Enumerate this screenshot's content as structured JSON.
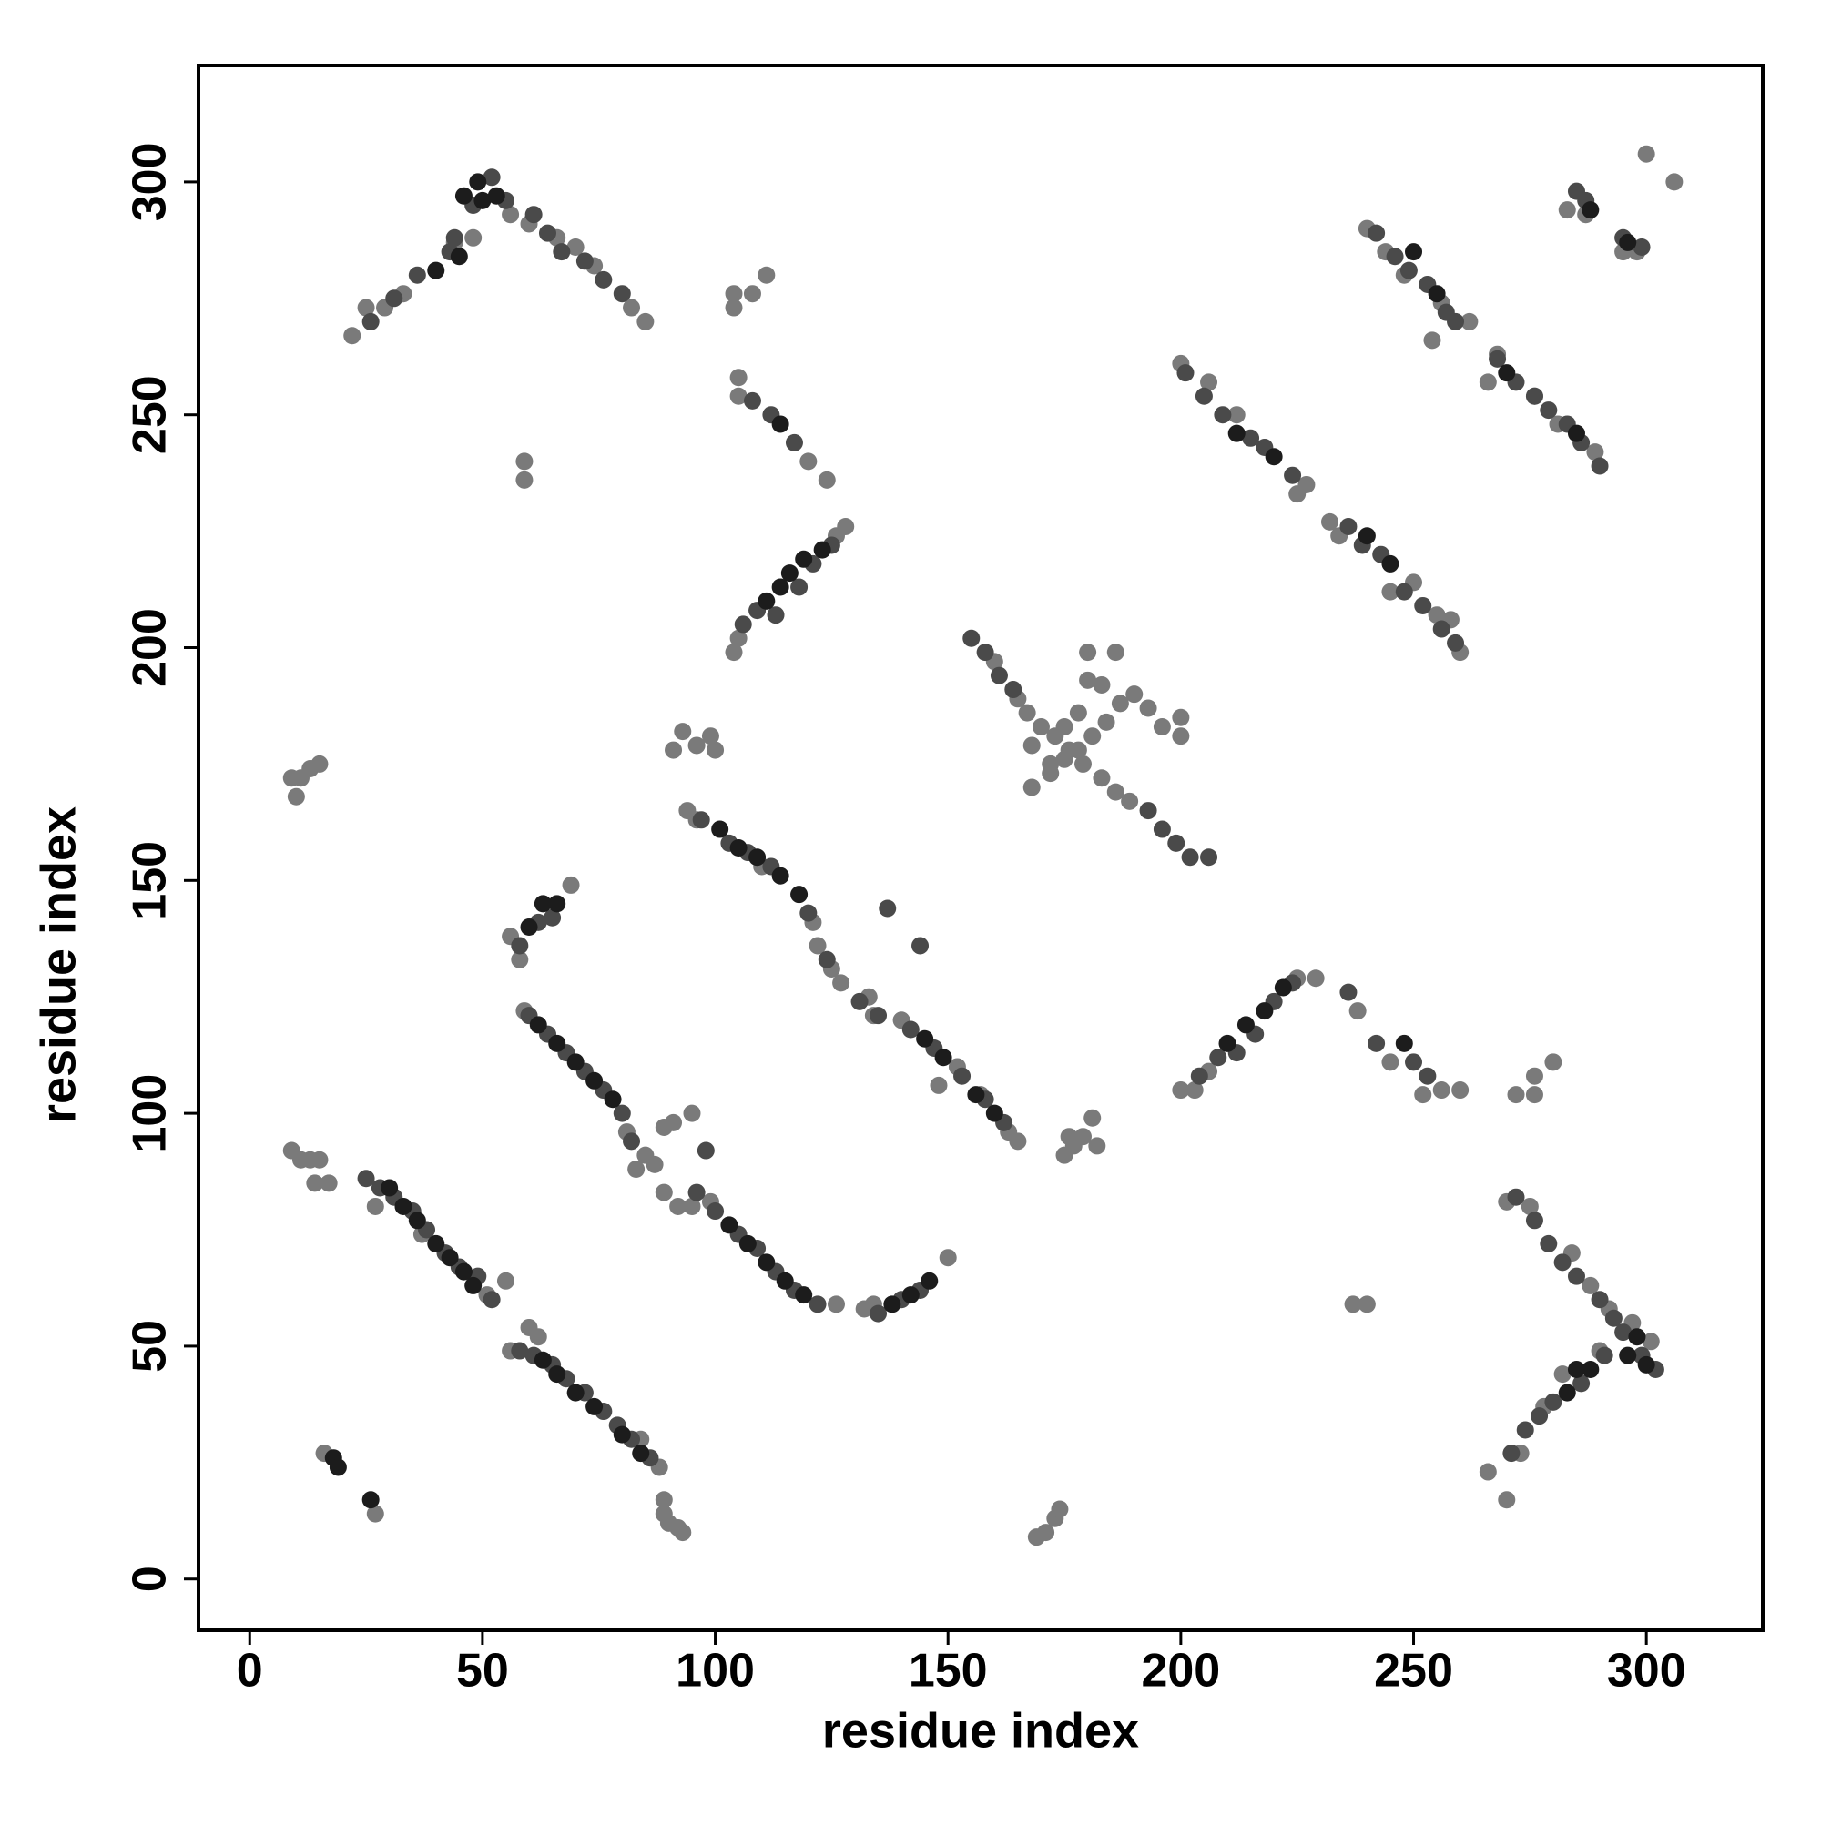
{
  "chart_data": {
    "type": "scatter",
    "xlabel": "residue index",
    "ylabel": "residue index",
    "xlim": [
      -11,
      325
    ],
    "ylim": [
      -11,
      325
    ],
    "xticks": [
      0,
      50,
      100,
      150,
      200,
      250,
      300
    ],
    "yticks": [
      0,
      50,
      100,
      150,
      200,
      250,
      300
    ],
    "series": [
      {
        "color": "#7a7a7a",
        "x": [
          27,
          37,
          51,
          55,
          56,
          60,
          62,
          88,
          84,
          59,
          83,
          85,
          87,
          81,
          89,
          92,
          95,
          99,
          126,
          132,
          134,
          150,
          94,
          96,
          110,
          121,
          122,
          125,
          127,
          133,
          134,
          140,
          148,
          152,
          157,
          165,
          163,
          56,
          58,
          69,
          200,
          203,
          206,
          225,
          229,
          238,
          245,
          252,
          256,
          260,
          270,
          275,
          284,
          288,
          292,
          297,
          301,
          266,
          270,
          273,
          278,
          282,
          290,
          104,
          105,
          126,
          128,
          105,
          105,
          120,
          124,
          22,
          25,
          29,
          33,
          44,
          48,
          56,
          60,
          66,
          70,
          74,
          82,
          85,
          160,
          165,
          167,
          170,
          173,
          176,
          179,
          183,
          186,
          189,
          168,
          172,
          168,
          172,
          175,
          178,
          181,
          184,
          187,
          190,
          193,
          196,
          200,
          200,
          183,
          186,
          180,
          180,
          178,
          175,
          200,
          206,
          212,
          227,
          225,
          232,
          234,
          245,
          250,
          255,
          258,
          260,
          240,
          244,
          248,
          256,
          262,
          254,
          266,
          268,
          276,
          281,
          289,
          283,
          287,
          295,
          298,
          300,
          306,
          9,
          10,
          11,
          13,
          15,
          9,
          11,
          13,
          15,
          14,
          17,
          16,
          27,
          89,
          89,
          90,
          92,
          93,
          89,
          91,
          95,
          91,
          93,
          96,
          99,
          100,
          169,
          171,
          173,
          174,
          175,
          177,
          179,
          181,
          182,
          176,
          59,
          59,
          104,
          104,
          108,
          111,
          237,
          240,
          272,
          276,
          276,
          280
        ],
        "values": [
          80,
          74,
          61,
          64,
          49,
          54,
          52,
          24,
          30,
          122,
          88,
          91,
          89,
          96,
          83,
          80,
          80,
          81,
          59,
          58,
          59,
          69,
          165,
          163,
          153,
          141,
          136,
          131,
          128,
          125,
          121,
          120,
          106,
          110,
          104,
          94,
          96,
          138,
          133,
          149,
          105,
          105,
          109,
          129,
          129,
          122,
          111,
          104,
          105,
          105,
          81,
          80,
          70,
          63,
          58,
          55,
          51,
          23,
          17,
          27,
          37,
          44,
          49,
          199,
          202,
          224,
          226,
          254,
          258,
          240,
          236,
          267,
          273,
          273,
          276,
          287,
          288,
          293,
          291,
          288,
          286,
          282,
          273,
          270,
          197,
          189,
          186,
          183,
          181,
          178,
          175,
          172,
          169,
          167,
          179,
          175,
          170,
          173,
          176,
          178,
          181,
          184,
          188,
          190,
          187,
          183,
          181,
          185,
          192,
          199,
          199,
          193,
          186,
          183,
          261,
          257,
          250,
          235,
          233,
          227,
          224,
          212,
          214,
          207,
          206,
          199,
          290,
          285,
          280,
          274,
          270,
          266,
          257,
          263,
          254,
          248,
          242,
          294,
          293,
          285,
          285,
          306,
          300,
          172,
          168,
          172,
          174,
          175,
          92,
          90,
          90,
          90,
          85,
          85,
          27,
          14,
          17,
          14,
          12,
          11,
          10,
          97,
          98,
          100,
          178,
          182,
          179,
          181,
          178,
          9,
          10,
          13,
          15,
          91,
          93,
          95,
          99,
          93,
          95,
          240,
          236,
          273,
          276,
          276,
          280,
          59,
          59,
          104,
          104,
          108,
          111
        ]
      },
      {
        "color": "#4a4a4a",
        "x": [
          25,
          28,
          31,
          35,
          38,
          42,
          45,
          49,
          52,
          58,
          61,
          65,
          68,
          72,
          76,
          79,
          82,
          86,
          60,
          64,
          68,
          72,
          76,
          80,
          82,
          96,
          100,
          105,
          109,
          113,
          117,
          122,
          135,
          140,
          144,
          97,
          103,
          107,
          112,
          120,
          124,
          131,
          135,
          142,
          147,
          153,
          158,
          162,
          58,
          62,
          65,
          204,
          208,
          212,
          216,
          220,
          224,
          236,
          242,
          250,
          253,
          272,
          276,
          279,
          282,
          285,
          290,
          293,
          295,
          299,
          302,
          271,
          274,
          277,
          280,
          286,
          291,
          106,
          109,
          113,
          118,
          121,
          125,
          108,
          112,
          117,
          26,
          31,
          36,
          43,
          44,
          48,
          52,
          55,
          61,
          64,
          67,
          72,
          76,
          80,
          155,
          158,
          161,
          164,
          193,
          196,
          199,
          202,
          206,
          201,
          205,
          209,
          215,
          218,
          224,
          236,
          239,
          243,
          248,
          252,
          256,
          259,
          242,
          246,
          249,
          253,
          257,
          259,
          268,
          272,
          276,
          279,
          283,
          286,
          290,
          285,
          287,
          295,
          299,
          137,
          144,
          98
        ],
        "values": [
          86,
          84,
          82,
          79,
          75,
          70,
          67,
          65,
          60,
          49,
          48,
          46,
          43,
          40,
          36,
          33,
          30,
          26,
          121,
          117,
          113,
          109,
          105,
          100,
          94,
          83,
          79,
          74,
          71,
          66,
          62,
          59,
          57,
          60,
          62,
          163,
          158,
          156,
          153,
          143,
          133,
          124,
          121,
          118,
          114,
          108,
          103,
          98,
          136,
          141,
          142,
          108,
          112,
          113,
          117,
          124,
          128,
          126,
          115,
          111,
          108,
          82,
          77,
          72,
          68,
          65,
          60,
          56,
          53,
          48,
          45,
          27,
          32,
          35,
          38,
          42,
          48,
          205,
          208,
          207,
          213,
          218,
          222,
          253,
          250,
          244,
          270,
          275,
          280,
          285,
          288,
          295,
          301,
          296,
          293,
          289,
          285,
          283,
          279,
          276,
          202,
          199,
          194,
          191,
          165,
          161,
          158,
          155,
          155,
          259,
          254,
          250,
          245,
          243,
          237,
          226,
          222,
          220,
          212,
          209,
          204,
          201,
          289,
          284,
          281,
          278,
          272,
          270,
          262,
          257,
          254,
          251,
          248,
          244,
          239,
          298,
          296,
          288,
          286,
          144,
          136,
          92
        ]
      },
      {
        "color": "#1c1c1c",
        "x": [
          30,
          33,
          36,
          40,
          43,
          46,
          48,
          63,
          66,
          70,
          74,
          80,
          84,
          62,
          66,
          70,
          74,
          78,
          103,
          107,
          111,
          115,
          119,
          138,
          142,
          146,
          101,
          105,
          109,
          114,
          118,
          145,
          149,
          156,
          160,
          60,
          63,
          66,
          210,
          214,
          218,
          222,
          248,
          296,
          300,
          298,
          283,
          285,
          288,
          111,
          114,
          116,
          119,
          123,
          114,
          40,
          45,
          46,
          49,
          50,
          53,
          212,
          220,
          240,
          245,
          250,
          255,
          270,
          285,
          288,
          296,
          18,
          19,
          26
        ],
        "values": [
          84,
          80,
          77,
          72,
          69,
          66,
          63,
          47,
          44,
          40,
          37,
          31,
          27,
          119,
          115,
          111,
          107,
          103,
          76,
          72,
          68,
          64,
          61,
          59,
          61,
          64,
          161,
          157,
          155,
          151,
          147,
          116,
          112,
          104,
          100,
          140,
          145,
          145,
          115,
          119,
          122,
          127,
          115,
          48,
          46,
          52,
          40,
          45,
          45,
          210,
          213,
          216,
          219,
          221,
          248,
          281,
          284,
          297,
          300,
          296,
          297,
          246,
          241,
          224,
          218,
          285,
          276,
          259,
          246,
          294,
          287,
          26,
          24,
          17
        ]
      }
    ]
  }
}
